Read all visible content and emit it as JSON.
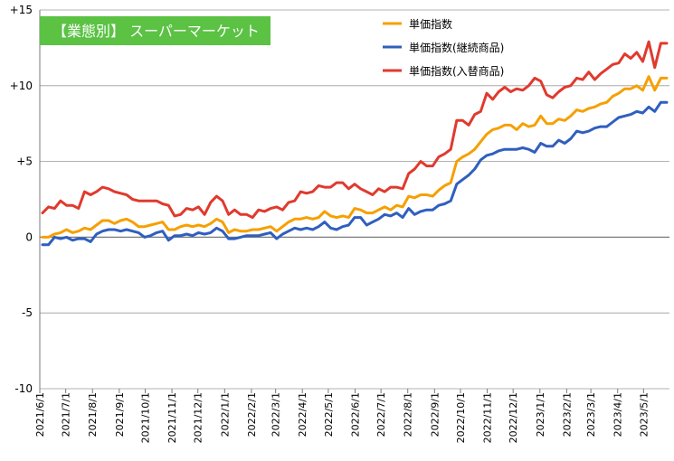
{
  "chart_data": {
    "type": "line",
    "title": "【業態別】 スーパーマーケット",
    "ylim": [
      -10,
      15
    ],
    "yticks": [
      -10,
      -5,
      0,
      5,
      10,
      15
    ],
    "ytick_labels": [
      "-10",
      "-5",
      "0",
      "+5",
      "+10",
      "+15"
    ],
    "grid": "horizontal",
    "legend_position": "top-right",
    "x_start": "2021/6/1",
    "x_end": "2023/5/31",
    "xtick_labels": [
      "2021/6/1",
      "2021/7/1",
      "2021/8/1",
      "2021/9/1",
      "2021/10/1",
      "2021/11/1",
      "2021/12/1",
      "2022/1/1",
      "2022/2/1",
      "2022/3/1",
      "2022/4/1",
      "2022/5/1",
      "2022/6/1",
      "2022/7/1",
      "2022/8/1",
      "2022/9/1",
      "2022/10/1",
      "2022/11/1",
      "2022/12/1",
      "2023/1/1",
      "2023/2/1",
      "2023/3/1",
      "2023/4/1",
      "2023/5/1"
    ],
    "series": [
      {
        "name": "単価指数",
        "color": "#F5A000",
        "values": [
          0.0,
          0.0,
          0.2,
          0.3,
          0.5,
          0.3,
          0.4,
          0.6,
          0.5,
          0.8,
          1.1,
          1.1,
          0.9,
          1.1,
          1.2,
          1.0,
          0.7,
          0.7,
          0.8,
          0.9,
          1.0,
          0.5,
          0.5,
          0.7,
          0.8,
          0.7,
          0.8,
          0.7,
          0.9,
          1.2,
          1.0,
          0.3,
          0.5,
          0.4,
          0.4,
          0.5,
          0.5,
          0.6,
          0.7,
          0.4,
          0.7,
          1.0,
          1.2,
          1.2,
          1.3,
          1.2,
          1.3,
          1.7,
          1.4,
          1.3,
          1.4,
          1.3,
          1.9,
          1.8,
          1.6,
          1.6,
          1.8,
          2.0,
          1.8,
          2.1,
          2.0,
          2.7,
          2.6,
          2.8,
          2.8,
          2.7,
          3.1,
          3.4,
          3.6,
          5.0,
          5.3,
          5.5,
          5.8,
          6.3,
          6.8,
          7.1,
          7.2,
          7.4,
          7.4,
          7.1,
          7.5,
          7.3,
          7.4,
          8.0,
          7.5,
          7.5,
          7.8,
          7.7,
          8.0,
          8.4,
          8.3,
          8.5,
          8.6,
          8.8,
          8.9,
          9.3,
          9.5,
          9.8,
          9.8,
          10.0,
          9.7,
          10.6,
          9.7,
          10.5,
          10.5
        ]
      },
      {
        "name": "単価指数(継続商品)",
        "color": "#2F5FBF",
        "values": [
          -0.5,
          -0.5,
          0.0,
          -0.1,
          0.0,
          -0.2,
          -0.1,
          -0.1,
          -0.3,
          0.2,
          0.4,
          0.5,
          0.5,
          0.4,
          0.5,
          0.4,
          0.3,
          0.0,
          0.1,
          0.3,
          0.4,
          -0.2,
          0.1,
          0.1,
          0.2,
          0.1,
          0.3,
          0.2,
          0.3,
          0.6,
          0.4,
          -0.1,
          -0.1,
          0.0,
          0.1,
          0.1,
          0.1,
          0.2,
          0.3,
          -0.1,
          0.2,
          0.4,
          0.6,
          0.5,
          0.6,
          0.5,
          0.7,
          1.0,
          0.6,
          0.5,
          0.7,
          0.8,
          1.3,
          1.3,
          0.8,
          1.0,
          1.2,
          1.5,
          1.4,
          1.6,
          1.3,
          1.9,
          1.5,
          1.7,
          1.8,
          1.8,
          2.1,
          2.2,
          2.4,
          3.5,
          3.8,
          4.1,
          4.5,
          5.1,
          5.4,
          5.5,
          5.7,
          5.8,
          5.8,
          5.8,
          5.9,
          5.8,
          5.6,
          6.2,
          6.0,
          6.0,
          6.4,
          6.2,
          6.5,
          7.0,
          6.9,
          7.0,
          7.2,
          7.3,
          7.3,
          7.6,
          7.9,
          8.0,
          8.1,
          8.3,
          8.2,
          8.6,
          8.3,
          8.9,
          8.9
        ]
      },
      {
        "name": "単価指数(入替商品)",
        "color": "#E03A2E",
        "values": [
          1.6,
          2.0,
          1.9,
          2.4,
          2.1,
          2.1,
          1.9,
          3.0,
          2.8,
          3.0,
          3.3,
          3.2,
          3.0,
          2.9,
          2.8,
          2.5,
          2.4,
          2.4,
          2.4,
          2.4,
          2.2,
          2.1,
          1.4,
          1.5,
          1.9,
          1.8,
          2.0,
          1.5,
          2.3,
          2.7,
          2.4,
          1.5,
          1.8,
          1.5,
          1.5,
          1.3,
          1.8,
          1.7,
          1.9,
          2.0,
          1.8,
          2.3,
          2.4,
          3.0,
          2.9,
          3.0,
          3.4,
          3.3,
          3.3,
          3.6,
          3.6,
          3.2,
          3.5,
          3.2,
          3.0,
          2.8,
          3.2,
          3.0,
          3.3,
          3.3,
          3.2,
          4.2,
          4.5,
          5.0,
          4.7,
          4.7,
          5.3,
          5.5,
          5.8,
          7.7,
          7.7,
          7.4,
          8.1,
          8.3,
          9.5,
          9.1,
          9.6,
          9.9,
          9.6,
          9.8,
          9.7,
          10.0,
          10.5,
          10.3,
          9.4,
          9.2,
          9.6,
          9.9,
          10.0,
          10.5,
          10.4,
          10.9,
          10.4,
          10.8,
          11.1,
          11.4,
          11.5,
          12.1,
          11.8,
          12.2,
          11.6,
          12.9,
          11.2,
          12.8,
          12.8
        ]
      }
    ]
  }
}
